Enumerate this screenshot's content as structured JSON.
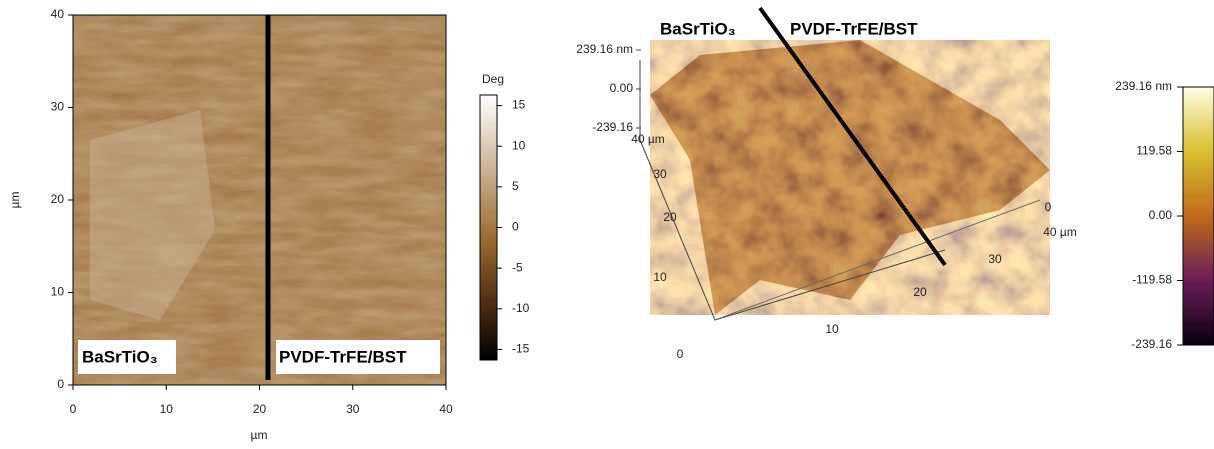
{
  "left_panel": {
    "xlabel": "µm",
    "ylabel": "µm",
    "xlim": [
      0,
      40
    ],
    "ylim": [
      0,
      40
    ],
    "xticks": [
      0,
      10,
      20,
      30,
      40
    ],
    "yticks": [
      0,
      10,
      20,
      30,
      40
    ],
    "colorbar": {
      "title": "Deg",
      "lim": [
        -16.3,
        16.3
      ],
      "ticks": [
        15,
        10,
        5,
        0,
        -5,
        -10,
        -15
      ]
    },
    "labels": [
      "BaSrTiO₃",
      "PVDF-TrFE/BST"
    ]
  },
  "right_panel": {
    "labels": [
      "BaSrTiO₃",
      "PVDF-TrFE/BST"
    ],
    "z_ticks": [
      {
        "value": 239.16,
        "label": "239.16 nm"
      },
      {
        "value": 0,
        "label": "0.00"
      },
      {
        "value": -239.16,
        "label": "-239.16"
      }
    ],
    "left_axis_ticks": [
      {
        "value": 40,
        "label": "40 µm"
      },
      30,
      20,
      10,
      0
    ],
    "bottom_axis_ticks": [
      10,
      20,
      30,
      {
        "value": 40,
        "label": "40 µm"
      }
    ],
    "back_axis_ticks": [
      0
    ],
    "colorbar": {
      "lim": [
        -239.16,
        239.16
      ],
      "ticks": [
        {
          "value": 239.16,
          "label": "239.16 nm"
        },
        119.58,
        {
          "value": 0,
          "label": "0.00"
        },
        -119.58,
        -239.16
      ]
    }
  }
}
